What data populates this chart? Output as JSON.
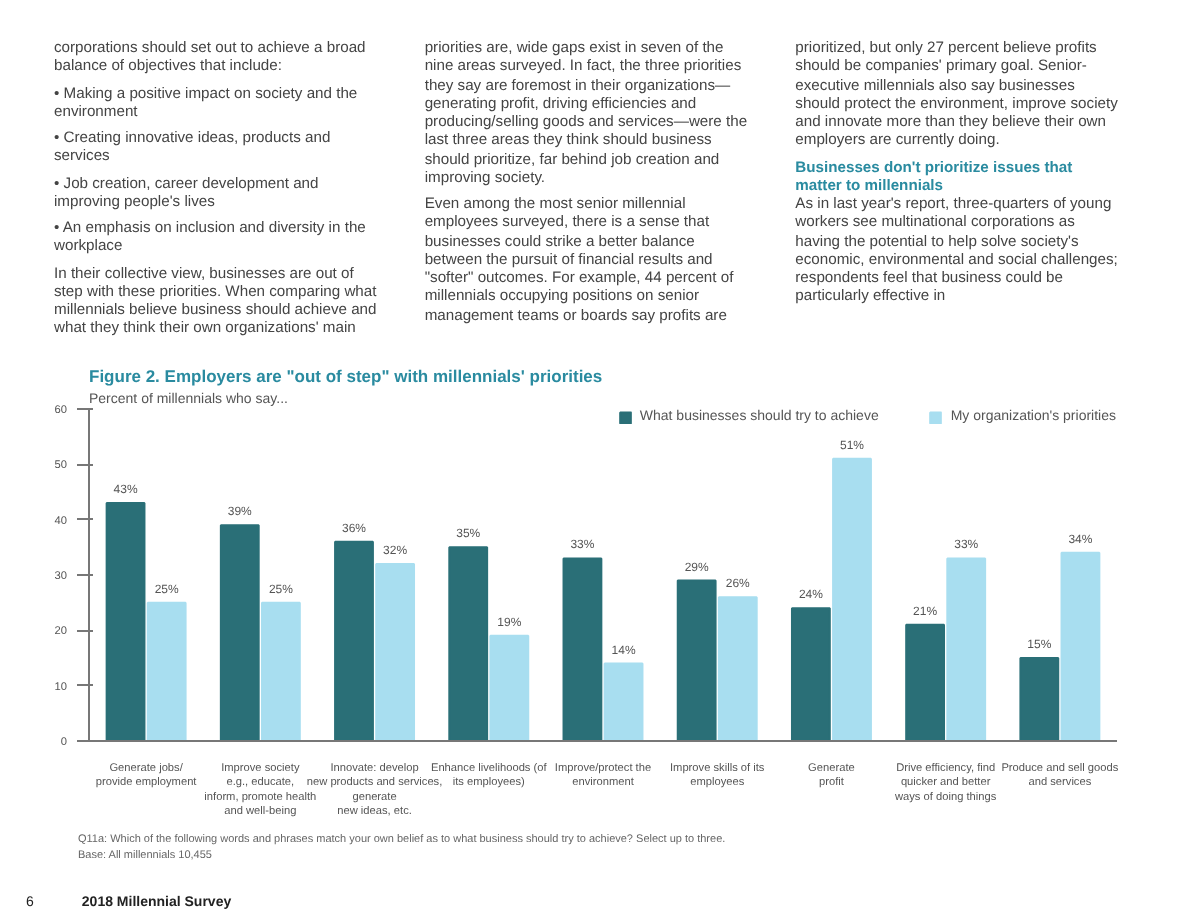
{
  "chart_data": {
    "type": "bar",
    "title": "Figure 2. Employers are \"out of step\" with millennials' priorities",
    "subtitle": "Percent of millennials who say...",
    "categories": [
      "Generate jobs/\nprovide employment",
      "Improve society\ne.g., educate,\ninform, promote health\nand well-being",
      "Innovate: develop\nnew products and services,\ngenerate\nnew ideas, etc.",
      "Enhance livelihoods (of\nits employees)",
      "Improve/protect the\nenvironment",
      "Improve skills of its\nemployees",
      "Generate\nprofit",
      "Drive efficiency, find\nquicker and better\nways of doing things",
      "Produce and sell goods\nand services"
    ],
    "series": [
      {
        "name": "What businesses should try to achieve",
        "color": "#2a6f77",
        "values": [
          43,
          39,
          36,
          35,
          33,
          29,
          24,
          21,
          15
        ],
        "value_labels": [
          "43%",
          "39%",
          "36%",
          "35%",
          "33%",
          "29%",
          "24%",
          "21%",
          "15%"
        ]
      },
      {
        "name": "My organization's priorities",
        "color": "#a8def0",
        "values": [
          25,
          25,
          32,
          19,
          14,
          26,
          51,
          33,
          34
        ],
        "value_labels": [
          "25%",
          "25%",
          "32%",
          "19%",
          "14%",
          "26%",
          "51%",
          "33%",
          "34%"
        ]
      }
    ],
    "ylim": [
      0,
      60
    ],
    "yticks": [
      0,
      10,
      20,
      30,
      40,
      50,
      60
    ],
    "grid": false,
    "legend": "top right",
    "annotations": [
      "corporations should set out to achieve a broad balance of objectives that include:",
      "• Making a positive impact on society and the environment",
      "• Creating innovative ideas, products and services",
      "• Job creation, career development and improving people's lives",
      "• An emphasis on inclusion and diversity in the workplace",
      "In their collective view, businesses are out of step with these priorities. When comparing what millennials believe business should achieve and what they think their own organizations' main priorities are, wide gaps exist in seven of the nine areas surveyed. In fact, the three priorities they say are foremost in their organizations—generating profit, driving efficiencies and producing/selling goods and services—were the last three areas they think should business should prioritize, far behind job creation and improving society.",
      "Even among the most senior millennial employees surveyed, there is a sense that businesses could strike a better balance between the pursuit of financial results and \"softer\" outcomes. For example, 44 percent of millennials occupying positions on senior management teams or boards say profits are prioritized, but only 27 percent believe profits should be companies' primary goal. Senior-executive millennials also say businesses should protect the environment, improve society and innovate more than they believe their own employers are currently doing.",
      "Businesses don't prioritize issues that matter to millennials",
      "As in last year's report, three-quarters of young workers see multinational corporations as having the potential to help solve society's economic, environmental and social challenges; respondents feel that business could be particularly effective in",
      "Q11a: Which of the following words and phrases match your own belief as to what business should try to achieve? Select up to three.",
      "Base: All millennials 10,455",
      "6",
      "2018 Millennial Survey"
    ]
  }
}
